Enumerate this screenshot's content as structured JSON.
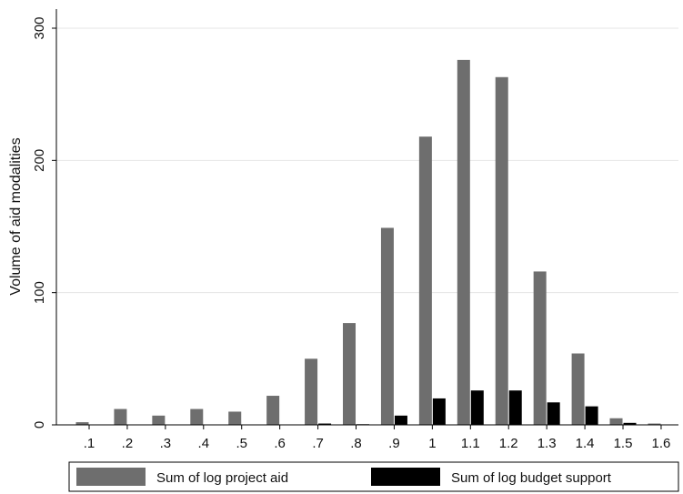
{
  "chart_data": {
    "type": "bar",
    "categories": [
      ".1",
      ".2",
      ".3",
      ".4",
      ".5",
      ".6",
      ".7",
      ".8",
      ".9",
      "1",
      "1.1",
      "1.2",
      "1.3",
      "1.4",
      "1.5",
      "1.6"
    ],
    "series": [
      {
        "name": "Sum of log project aid",
        "color": "#6e6e6e",
        "values": [
          2,
          12,
          7,
          12,
          10,
          22,
          50,
          77,
          149,
          218,
          276,
          263,
          116,
          54,
          5,
          1
        ]
      },
      {
        "name": "Sum of log budget support",
        "color": "#000000",
        "values": [
          0,
          0,
          0,
          0,
          0,
          0,
          1,
          0.5,
          7,
          20,
          26,
          26,
          17,
          14,
          1.5,
          0
        ]
      }
    ],
    "xlabel": "",
    "ylabel": "Volume of aid modalities",
    "ylim": [
      0,
      300
    ],
    "yticks": [
      0,
      100,
      200,
      300
    ],
    "grid": true,
    "legend_position": "bottom"
  }
}
